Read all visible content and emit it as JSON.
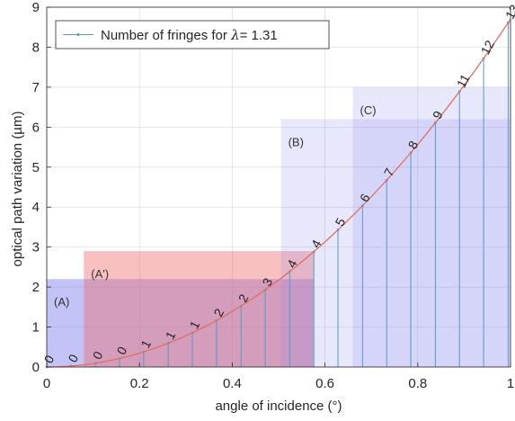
{
  "chart_data": {
    "type": "line",
    "xlabel": "angle of incidence (°)",
    "ylabel": "optical path variation (µm)",
    "xlim": [
      0,
      1
    ],
    "ylim": [
      0,
      9
    ],
    "xticks": [
      {
        "v": 0,
        "label": "0"
      },
      {
        "v": 0.2,
        "label": "0.2"
      },
      {
        "v": 0.4,
        "label": "0.4"
      },
      {
        "v": 0.6,
        "label": "0.6"
      },
      {
        "v": 0.8,
        "label": "0.8"
      },
      {
        "v": 1,
        "label": "1"
      }
    ],
    "yticks": [
      {
        "v": 0,
        "label": "0"
      },
      {
        "v": 1,
        "label": "1"
      },
      {
        "v": 2,
        "label": "2"
      },
      {
        "v": 3,
        "label": "3"
      },
      {
        "v": 4,
        "label": "4"
      },
      {
        "v": 5,
        "label": "5"
      },
      {
        "v": 6,
        "label": "6"
      },
      {
        "v": 7,
        "label": "7"
      },
      {
        "v": 8,
        "label": "8"
      },
      {
        "v": 9,
        "label": "9"
      }
    ],
    "grid": true,
    "legend": {
      "placement": "top-left",
      "prefix": "Number of fringes for ",
      "symbol": "λ",
      "suffix": "= 1.31"
    },
    "curve": {
      "color": "#e07060",
      "coefficient": 8.7
    },
    "stems": {
      "color": "#5a96c8",
      "x": [
        0,
        0.052,
        0.105,
        0.157,
        0.209,
        0.262,
        0.314,
        0.366,
        0.419,
        0.471,
        0.524,
        0.576,
        0.628,
        0.681,
        0.733,
        0.785,
        0.838,
        0.89,
        0.942,
        0.995
      ],
      "labels": [
        "0",
        "0",
        "0",
        "0",
        "1",
        "1",
        "1",
        "2",
        "2",
        "3",
        "4",
        "4",
        "5",
        "6",
        "7",
        "8",
        "9",
        "11",
        "12",
        "13"
      ]
    },
    "regions": [
      {
        "label": "(A)",
        "x": [
          0,
          0.575
        ],
        "y": [
          0,
          2.2
        ],
        "color": "#7070ee",
        "opacity": 0.42
      },
      {
        "label": "(A')",
        "x": [
          0.08,
          0.575
        ],
        "y": [
          0,
          2.9
        ],
        "color": "#ee6a6a",
        "opacity": 0.42
      },
      {
        "label": "(B)",
        "x": [
          0.505,
          1
        ],
        "y": [
          0,
          6.2
        ],
        "color": "#8a8aee",
        "opacity": 0.2
      },
      {
        "label": "(C)",
        "x": [
          0.66,
          1
        ],
        "y": [
          0,
          7
        ],
        "color": "#8a8aee",
        "opacity": 0.2
      }
    ]
  }
}
